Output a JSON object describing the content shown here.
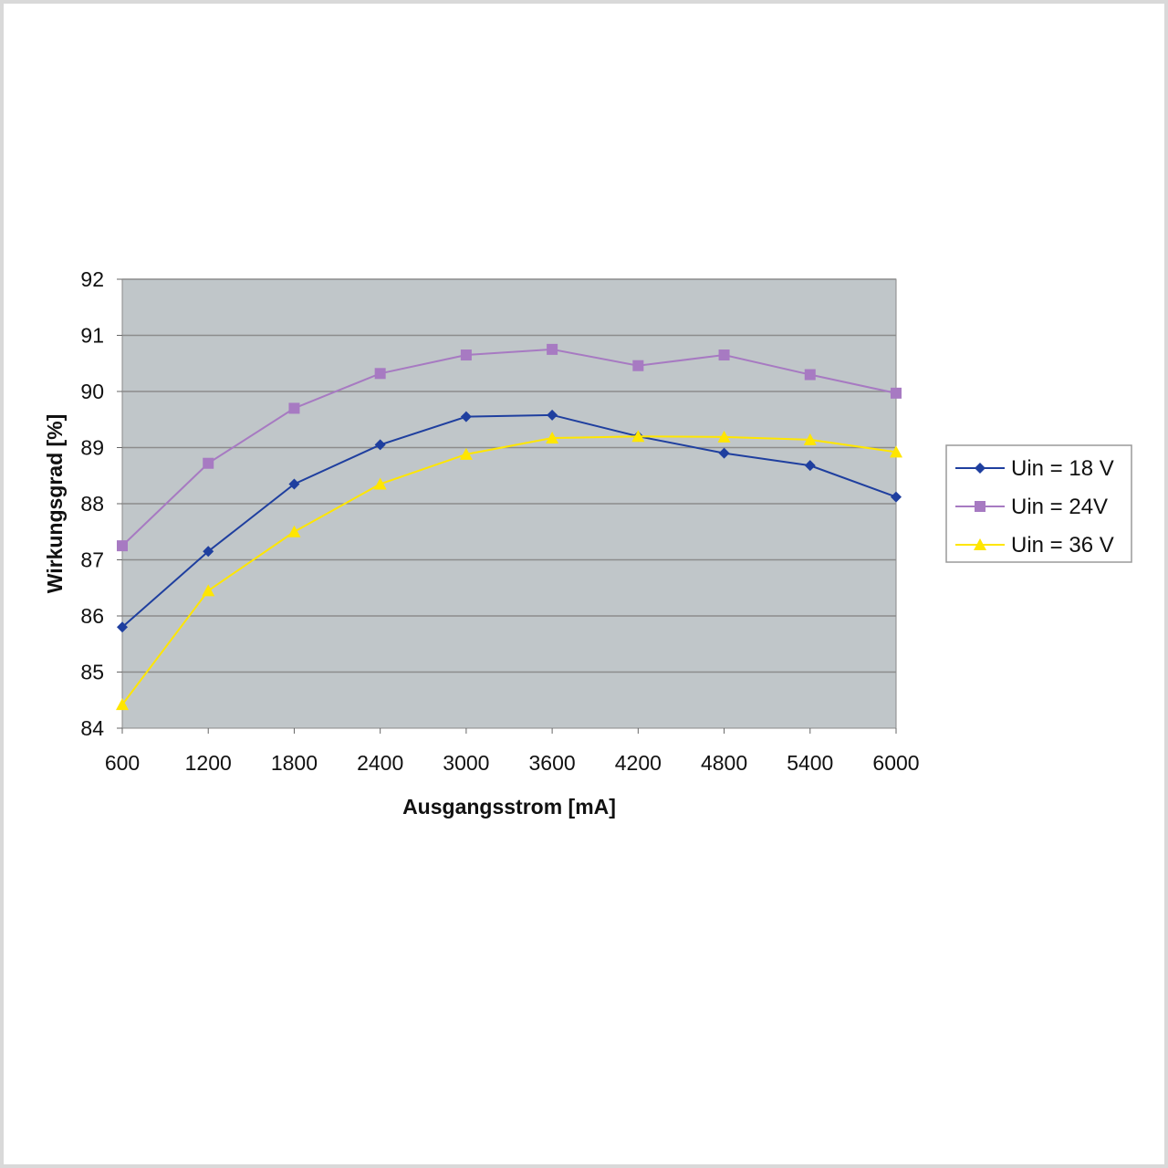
{
  "chart_data": {
    "type": "line",
    "xlabel": "Ausgangsstrom [mA]",
    "ylabel": "Wirkungsgrad [%]",
    "categories": [
      "600",
      "1200",
      "1800",
      "2400",
      "3000",
      "3600",
      "4200",
      "4800",
      "5400",
      "6000"
    ],
    "ylim": [
      84,
      92
    ],
    "yticks": [
      "84",
      "85",
      "86",
      "87",
      "88",
      "89",
      "90",
      "91",
      "92"
    ],
    "grid": true,
    "legend_position": "right",
    "plot_background": "#c0c6c9",
    "series": [
      {
        "name": "Uin = 18 V",
        "color": "#1f3f9f",
        "marker": "diamond",
        "values": [
          85.8,
          87.15,
          88.35,
          89.05,
          89.55,
          89.58,
          89.2,
          88.9,
          88.68,
          88.12
        ]
      },
      {
        "name": "Uin = 24V",
        "color": "#a77ac2",
        "marker": "square",
        "values": [
          87.25,
          88.72,
          89.7,
          90.32,
          90.65,
          90.75,
          90.46,
          90.65,
          90.3,
          89.97
        ]
      },
      {
        "name": "Uin = 36 V",
        "color": "#ffe600",
        "marker": "triangle",
        "values": [
          84.42,
          86.45,
          87.5,
          88.35,
          88.88,
          89.17,
          89.2,
          89.19,
          89.14,
          88.92
        ]
      }
    ]
  }
}
